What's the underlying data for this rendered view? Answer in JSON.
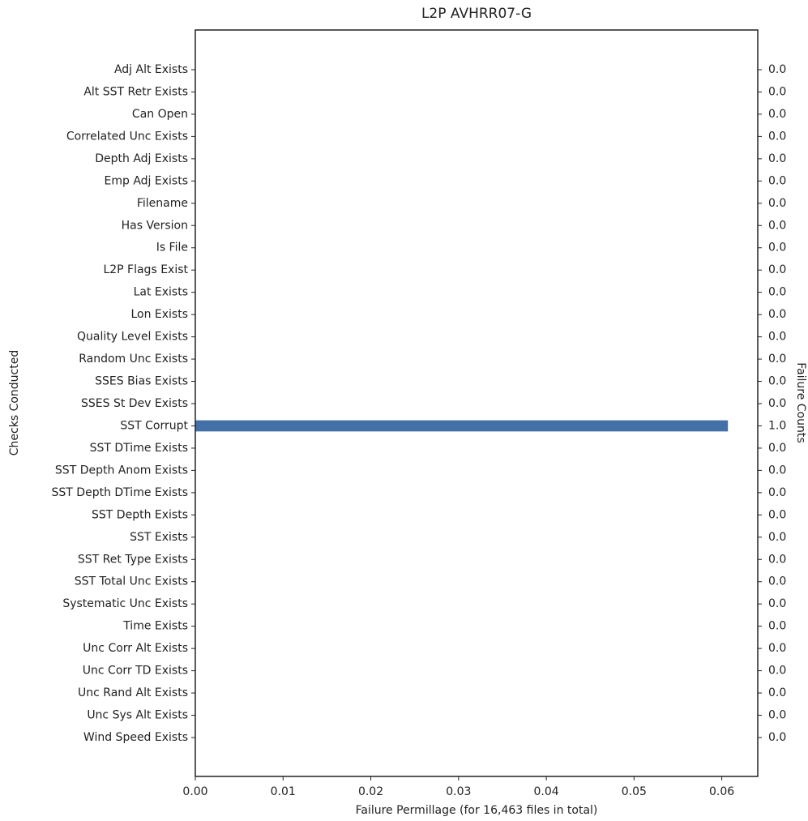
{
  "chart_data": {
    "type": "barh",
    "title": "L2P AVHRR07-G",
    "xlabel": "Failure Permillage (for 16,463 files in total)",
    "ylabel": "Checks Conducted",
    "y2label": "Failure Counts",
    "color": "#4470a8",
    "categories": [
      "Adj Alt Exists",
      "Alt SST Retr Exists",
      "Can Open",
      "Correlated Unc Exists",
      "Depth Adj Exists",
      "Emp Adj Exists",
      "Filename",
      "Has Version",
      "Is File",
      "L2P Flags Exist",
      "Lat Exists",
      "Lon Exists",
      "Quality Level Exists",
      "Random Unc Exists",
      "SSES Bias Exists",
      "SSES St Dev Exists",
      "SST Corrupt",
      "SST DTime Exists",
      "SST Depth Anom Exists",
      "SST Depth DTime Exists",
      "SST Depth Exists",
      "SST Exists",
      "SST Ret Type Exists",
      "SST Total Unc Exists",
      "Systematic Unc Exists",
      "Time Exists",
      "Unc Corr Alt Exists",
      "Unc Corr TD Exists",
      "Unc Rand Alt Exists",
      "Unc Sys Alt Exists",
      "Wind Speed Exists"
    ],
    "values": [
      0,
      0,
      0,
      0,
      0,
      0,
      0,
      0,
      0,
      0,
      0,
      0,
      0,
      0,
      0,
      0,
      0.0607,
      0,
      0,
      0,
      0,
      0,
      0,
      0,
      0,
      0,
      0,
      0,
      0,
      0,
      0
    ],
    "count_labels": [
      "0.0",
      "0.0",
      "0.0",
      "0.0",
      "0.0",
      "0.0",
      "0.0",
      "0.0",
      "0.0",
      "0.0",
      "0.0",
      "0.0",
      "0.0",
      "0.0",
      "0.0",
      "0.0",
      "1.0",
      "0.0",
      "0.0",
      "0.0",
      "0.0",
      "0.0",
      "0.0",
      "0.0",
      "0.0",
      "0.0",
      "0.0",
      "0.0",
      "0.0",
      "0.0",
      "0.0"
    ],
    "xlim": [
      0,
      0.0641
    ],
    "xticks": [
      {
        "value": 0,
        "label": "0.00"
      },
      {
        "value": 0.01,
        "label": "0.01"
      },
      {
        "value": 0.02,
        "label": "0.02"
      },
      {
        "value": 0.03,
        "label": "0.03"
      },
      {
        "value": 0.04,
        "label": "0.04"
      },
      {
        "value": 0.05,
        "label": "0.05"
      },
      {
        "value": 0.06,
        "label": "0.06"
      }
    ]
  }
}
